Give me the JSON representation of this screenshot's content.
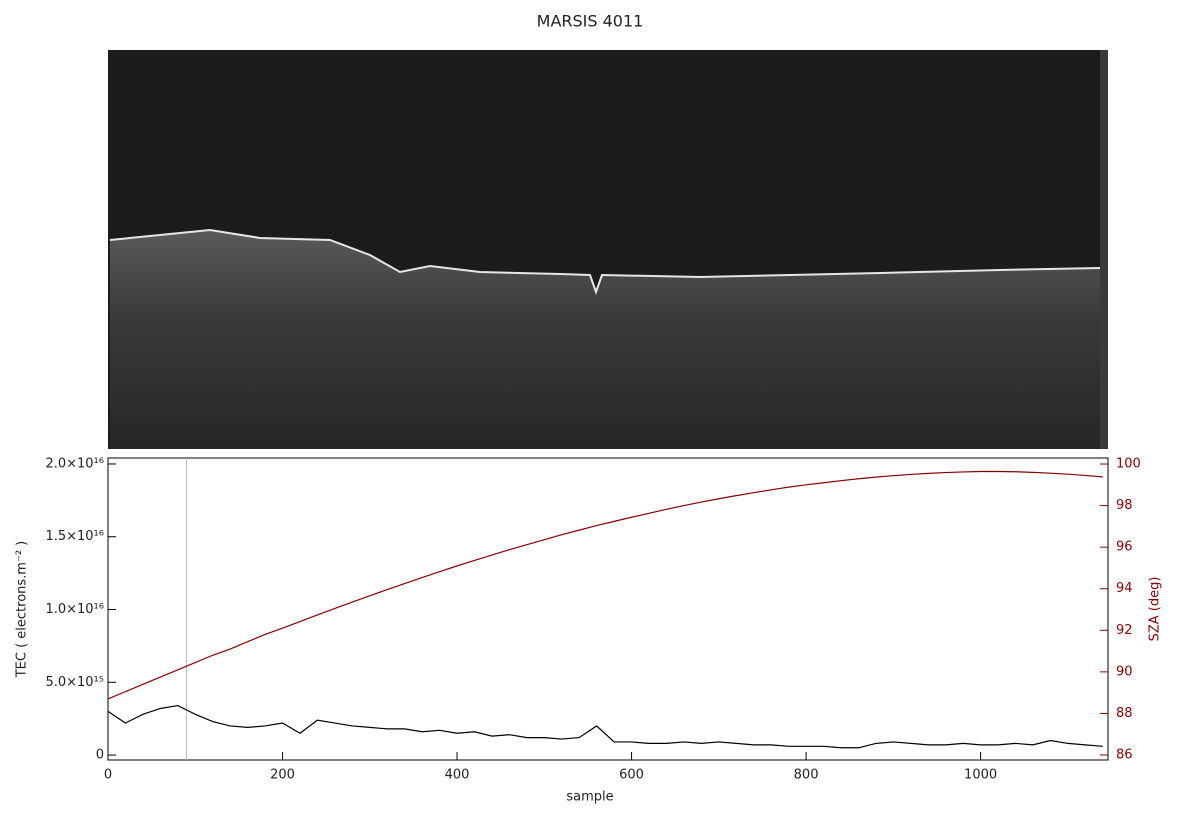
{
  "chart_data": {
    "type": "line",
    "title": "MARSIS 4011",
    "x_label": "sample",
    "y_label": "TEC ( electrons.m⁻² )",
    "y2_label": "SZA (deg)",
    "x": [
      0,
      20,
      40,
      60,
      80,
      100,
      120,
      140,
      160,
      180,
      200,
      220,
      240,
      260,
      280,
      300,
      320,
      340,
      360,
      380,
      400,
      420,
      440,
      460,
      480,
      500,
      520,
      540,
      560,
      580,
      600,
      620,
      640,
      660,
      680,
      700,
      720,
      740,
      760,
      780,
      800,
      820,
      840,
      860,
      880,
      900,
      920,
      940,
      960,
      980,
      1000,
      1020,
      1040,
      1060,
      1080,
      1100,
      1120,
      1140
    ],
    "series": [
      {
        "name": "TEC",
        "color": "#000000",
        "values": [
          3000000000000000.0,
          2200000000000000.0,
          2800000000000000.0,
          3200000000000000.0,
          3400000000000000.0,
          2800000000000000.0,
          2300000000000000.0,
          2000000000000000.0,
          1900000000000000.0,
          2000000000000000.0,
          2200000000000000.0,
          1500000000000000.0,
          2400000000000000.0,
          2200000000000000.0,
          2000000000000000.0,
          1900000000000000.0,
          1800000000000000.0,
          1800000000000000.0,
          1600000000000000.0,
          1700000000000000.0,
          1500000000000000.0,
          1600000000000000.0,
          1300000000000000.0,
          1400000000000000.0,
          1200000000000000.0,
          1200000000000000.0,
          1100000000000000.0,
          1200000000000000.0,
          2000000000000000.0,
          900000000000000.0,
          900000000000000.0,
          800000000000000.0,
          800000000000000.0,
          900000000000000.0,
          800000000000000.0,
          900000000000000.0,
          800000000000000.0,
          700000000000000.0,
          700000000000000.0,
          600000000000000.0,
          600000000000000.0,
          600000000000000.0,
          500000000000000.0,
          500000000000000.0,
          800000000000000.0,
          900000000000000.0,
          800000000000000.0,
          700000000000000.0,
          700000000000000.0,
          800000000000000.0,
          700000000000000.0,
          700000000000000.0,
          800000000000000.0,
          700000000000000.0,
          1000000000000000.0,
          800000000000000.0,
          700000000000000.0,
          600000000000000.0
        ]
      },
      {
        "name": "SZA",
        "color": "#8b0000",
        "axis": "y2",
        "values": [
          88.7,
          89.05,
          89.4,
          89.75,
          90.1,
          90.45,
          90.8,
          91.1,
          91.45,
          91.8,
          92.1,
          92.42,
          92.74,
          93.05,
          93.36,
          93.66,
          93.96,
          94.25,
          94.54,
          94.82,
          95.1,
          95.36,
          95.62,
          95.88,
          96.12,
          96.36,
          96.6,
          96.82,
          97.04,
          97.24,
          97.44,
          97.63,
          97.82,
          98.0,
          98.17,
          98.33,
          98.48,
          98.62,
          98.76,
          98.89,
          99.0,
          99.1,
          99.2,
          99.29,
          99.37,
          99.44,
          99.5,
          99.55,
          99.59,
          99.62,
          99.64,
          99.64,
          99.63,
          99.6,
          99.56,
          99.51,
          99.45,
          99.38
        ]
      }
    ],
    "vline": 90,
    "xlim": [
      0,
      1146
    ],
    "xticks": [
      0,
      200,
      400,
      600,
      800,
      1000
    ],
    "ylim": [
      -340000000000000.0,
      2.041e+16
    ],
    "yticks": [
      0,
      {
        "value": 5000000000000000.0,
        "label": "5.0×10¹⁵"
      },
      {
        "value": 1e+16,
        "label": "1.0×10¹⁶"
      },
      {
        "value": 1.5e+16,
        "label": "1.5×10¹⁶"
      },
      {
        "value": 2e+16,
        "label": "2.0×10¹⁶"
      }
    ],
    "y2lim": [
      85.76,
      100.29
    ],
    "y2ticks": [
      86,
      88,
      90,
      92,
      94,
      96,
      98,
      100
    ],
    "y2_color": "#8b0000"
  }
}
